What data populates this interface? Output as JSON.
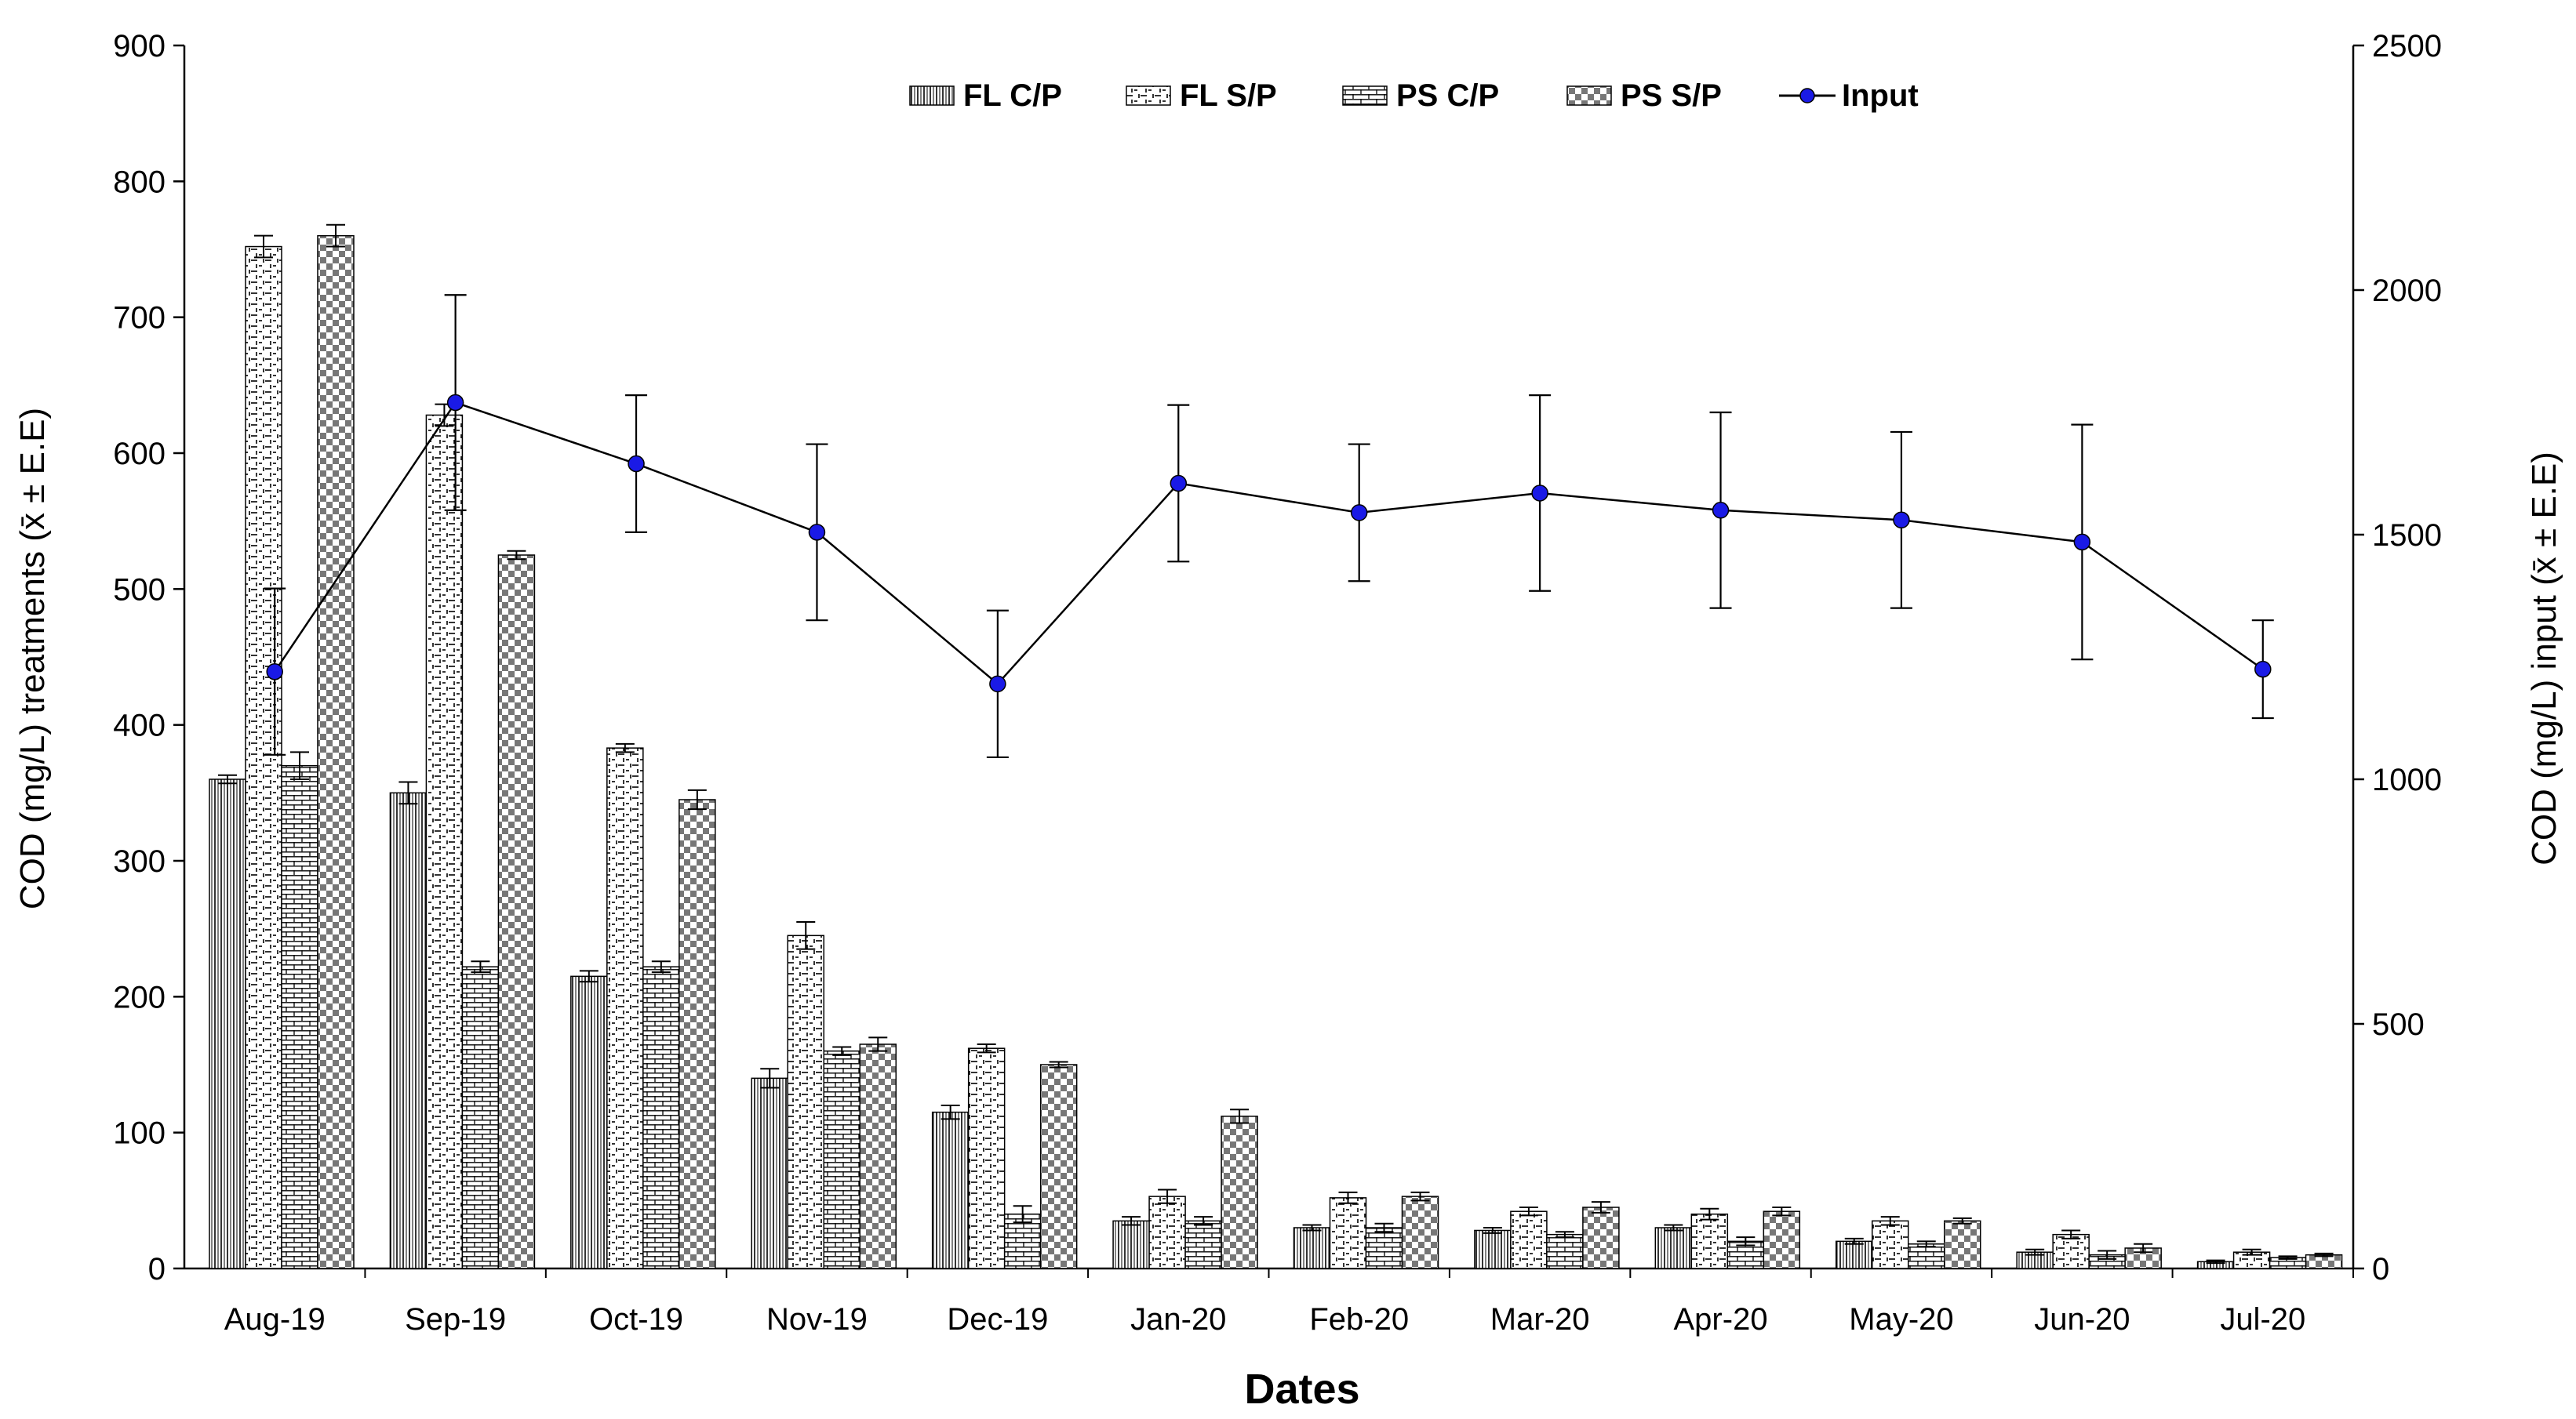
{
  "chart_data": {
    "type": "bar",
    "categories": [
      "Aug-19",
      "Sep-19",
      "Oct-19",
      "Nov-19",
      "Dec-19",
      "Jan-20",
      "Feb-20",
      "Mar-20",
      "Apr-20",
      "May-20",
      "Jun-20",
      "Jul-20"
    ],
    "series": [
      {
        "name": "FL C/P",
        "values": [
          360,
          350,
          215,
          140,
          115,
          35,
          30,
          28,
          30,
          20,
          12,
          5
        ],
        "errors": [
          3,
          8,
          4,
          7,
          5,
          3,
          2,
          2,
          2,
          2,
          2,
          1
        ]
      },
      {
        "name": "FL S/P",
        "values": [
          752,
          628,
          383,
          245,
          162,
          53,
          52,
          42,
          40,
          35,
          25,
          12
        ],
        "errors": [
          8,
          8,
          3,
          10,
          3,
          5,
          4,
          3,
          4,
          3,
          3,
          2
        ]
      },
      {
        "name": "PS C/P",
        "values": [
          370,
          222,
          222,
          160,
          40,
          35,
          30,
          25,
          20,
          18,
          10,
          8
        ],
        "errors": [
          10,
          4,
          4,
          3,
          6,
          3,
          3,
          2,
          3,
          2,
          3,
          1
        ]
      },
      {
        "name": "PS S/P",
        "values": [
          760,
          525,
          345,
          165,
          150,
          112,
          53,
          45,
          42,
          35,
          15,
          10
        ],
        "errors": [
          8,
          3,
          7,
          5,
          2,
          5,
          3,
          4,
          3,
          2,
          3,
          1
        ]
      }
    ],
    "line_series": {
      "name": "Input",
      "axis": "right",
      "values": [
        1220,
        1770,
        1645,
        1505,
        1195,
        1605,
        1545,
        1585,
        1550,
        1530,
        1485,
        1225
      ],
      "errors": [
        170,
        220,
        140,
        180,
        150,
        160,
        140,
        200,
        200,
        180,
        240,
        100
      ]
    },
    "title": "",
    "xlabel": "Dates",
    "ylabel": "COD (mg/L) treatments (x̄ ± E.E)",
    "ylabel_right": "COD (mg/L) input (x̄ ± E.E)",
    "ylim": [
      0,
      900
    ],
    "ylim_right": [
      0,
      2500
    ],
    "yticks": [
      "0",
      "100",
      "200",
      "300",
      "400",
      "500",
      "600",
      "700",
      "800",
      "900"
    ],
    "yticks_right": [
      "0",
      "500",
      "1000",
      "1500",
      "2000",
      "2500"
    ],
    "legend": [
      "FL C/P",
      "FL S/P",
      "PS C/P",
      "PS S/P",
      "Input"
    ],
    "legend_position": "top-center",
    "colors": {
      "line": "#000000",
      "marker": "#1a1ae6",
      "bar_stroke": "#000000"
    }
  }
}
